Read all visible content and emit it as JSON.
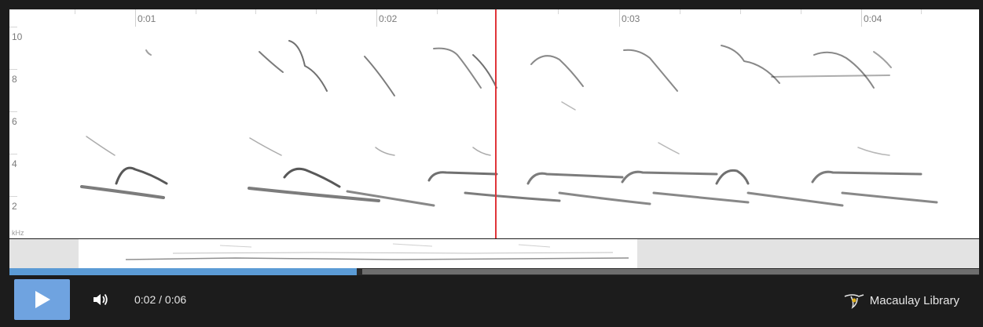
{
  "timeline": {
    "ticks": [
      "0:01",
      "0:02",
      "0:03",
      "0:04"
    ]
  },
  "frequency": {
    "labels": [
      "10",
      "8",
      "6",
      "4",
      "2"
    ],
    "unit": "kHz"
  },
  "playback": {
    "current_time": "0:02",
    "duration": "0:06",
    "display": "0:02 / 0:06",
    "progress_fraction": 0.36
  },
  "controls": {
    "play_icon": "play-icon",
    "volume_icon": "volume-icon"
  },
  "brand": {
    "name": "Macaulay Library",
    "logo_icon": "macaulay-bird-logo"
  },
  "colors": {
    "playhead": "#e0353a",
    "progress": "#5b9bd5",
    "play_button": "#6fa3e0"
  }
}
